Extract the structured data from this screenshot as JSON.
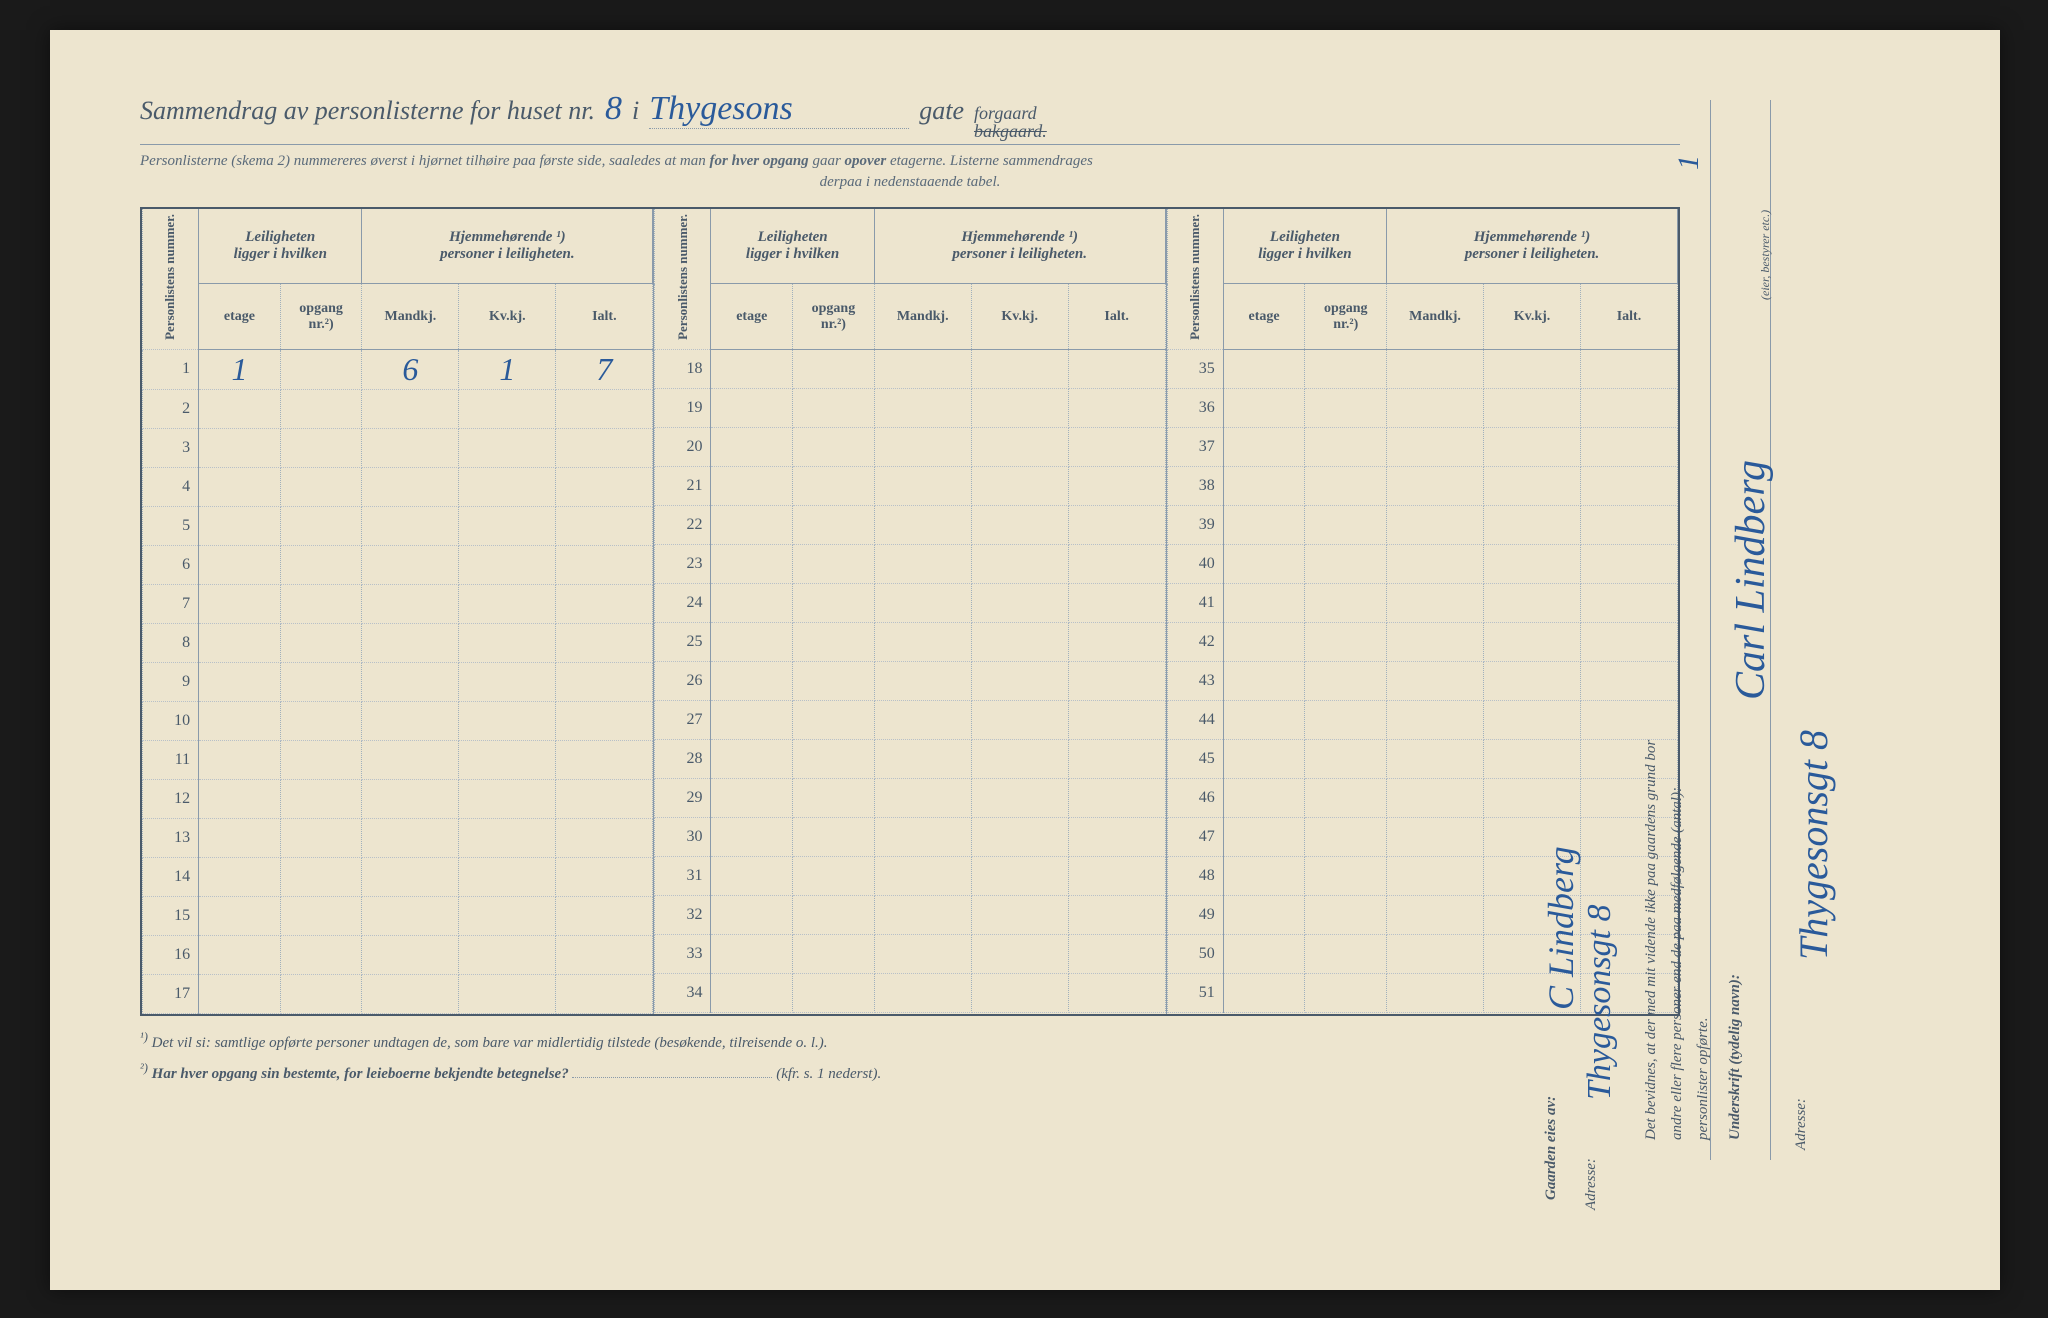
{
  "header": {
    "title_prefix": "Sammendrag av personlisterne for huset nr.",
    "house_nr": "8",
    "i": "i",
    "street_hand": "Thygesons",
    "gate": "gate",
    "forgaard": "forgaard",
    "bakgaard": "bakgaard.",
    "sub1": "Personlisterne (skema 2) nummereres øverst i hjørnet tilhøire paa første side, saaledes at man ",
    "sub1b": "for hver opgang",
    "sub1c": " gaar ",
    "sub1d": "opover",
    "sub1e": " etagerne.   Listerne sammendrages",
    "sub2": "derpaa i nedenstaaende tabel."
  },
  "cols": {
    "personlistens": "Personlistens\nnummer.",
    "leil": "Leiligheten\nligger i hvilken",
    "hjem": "Hjemmehørende ¹)\npersoner i leiligheten.",
    "etage": "etage",
    "opgang": "opgang\nnr.²)",
    "mandkj": "Mandkj.",
    "kvkj": "Kv.kj.",
    "ialt": "Ialt."
  },
  "row1": {
    "etage": "1",
    "mandkj": "6",
    "kvkj": "1",
    "ialt": "7"
  },
  "ranges": {
    "a_start": 1,
    "a_end": 17,
    "b_start": 18,
    "b_end": 34,
    "c_start": 35,
    "c_end": 51
  },
  "footnotes": {
    "f1_sup": "¹)",
    "f1": "Det vil si: samtlige opførte personer undtagen de, som bare var ",
    "f1_mid": "midlertidig",
    "f1_end": " tilstede (besøkende, tilreisende o. l.).",
    "f2_sup": "²)",
    "f2": "Har hver opgang sin bestemte, for leieboerne bekjendte betegnelse?",
    "f2_end": "(kfr. s. 1 nederst)."
  },
  "side": {
    "bevid1": "Det bevidnes, at der med mit vidende ikke paa gaardens grund bor",
    "bevid2": "andre eller flere personer end de paa medfølgende (antal):",
    "bevid_num": "1",
    "bevid3": "personlister opførte.",
    "undersk_label": "Underskrift (tydelig navn):",
    "undersk_hand": "Carl Lindberg",
    "eier": "(eier, bestyrer etc.)",
    "adresse_label": "Adresse:",
    "adresse_hand": "Thygesonsgt 8"
  },
  "owner": {
    "label": "Gaarden eies av:",
    "name": "C Lindberg",
    "adresse_label": "Adresse:",
    "adresse": "Thygesonsgt 8"
  }
}
